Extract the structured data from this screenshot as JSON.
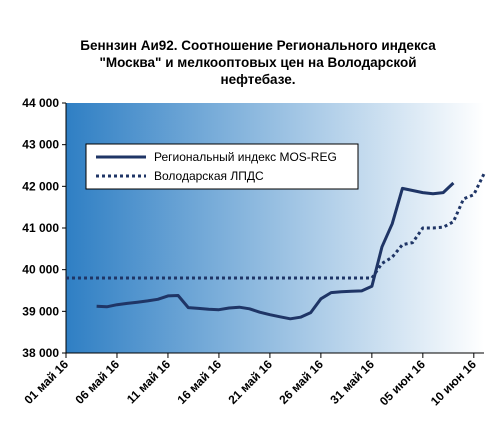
{
  "colors": {
    "series": "#1f3566",
    "plot_gradient_from": "#2f7fc4",
    "plot_gradient_to": "#ffffff",
    "axis": "#000000"
  },
  "chart_data": {
    "type": "line",
    "title_lines": [
      "Беннзин Аи92. Соотношение Регионального индекса",
      "\"Москва\" и мелкооптовых цен на Володарской",
      "нефтебазе."
    ],
    "xlabel": "",
    "ylabel": "",
    "x_range": [
      "2016-05-01",
      "2016-06-11"
    ],
    "ylim": [
      38000,
      44000
    ],
    "y_ticks": [
      38000,
      39000,
      40000,
      41000,
      42000,
      43000,
      44000
    ],
    "y_tick_labels": [
      "38 000",
      "39 000",
      "40 000",
      "41 000",
      "42 000",
      "43 000",
      "44 000"
    ],
    "x_ticks": [
      "2016-05-01",
      "2016-05-06",
      "2016-05-11",
      "2016-05-16",
      "2016-05-21",
      "2016-05-26",
      "2016-05-31",
      "2016-06-05",
      "2016-06-10"
    ],
    "x_tick_labels": [
      "01 май 16",
      "06 май 16",
      "11 май 16",
      "16 май 16",
      "21 май 16",
      "26 май 16",
      "31 май 16",
      "05 июн 16",
      "10 июн 16"
    ],
    "grid": false,
    "legend_position": "upper-left",
    "series": [
      {
        "name": "Региональный индекс MOS-REG",
        "style": "solid",
        "points": [
          [
            "2016-05-04",
            39120
          ],
          [
            "2016-05-05",
            39110
          ],
          [
            "2016-05-06",
            39160
          ],
          [
            "2016-05-07",
            39190
          ],
          [
            "2016-05-08",
            39220
          ],
          [
            "2016-05-09",
            39250
          ],
          [
            "2016-05-10",
            39290
          ],
          [
            "2016-05-11",
            39370
          ],
          [
            "2016-05-12",
            39380
          ],
          [
            "2016-05-13",
            39090
          ],
          [
            "2016-05-14",
            39070
          ],
          [
            "2016-05-15",
            39050
          ],
          [
            "2016-05-16",
            39040
          ],
          [
            "2016-05-17",
            39080
          ],
          [
            "2016-05-18",
            39100
          ],
          [
            "2016-05-19",
            39060
          ],
          [
            "2016-05-20",
            38980
          ],
          [
            "2016-05-21",
            38920
          ],
          [
            "2016-05-22",
            38870
          ],
          [
            "2016-05-23",
            38820
          ],
          [
            "2016-05-24",
            38860
          ],
          [
            "2016-05-25",
            38970
          ],
          [
            "2016-05-26",
            39300
          ],
          [
            "2016-05-27",
            39450
          ],
          [
            "2016-05-28",
            39470
          ],
          [
            "2016-05-29",
            39480
          ],
          [
            "2016-05-30",
            39490
          ],
          [
            "2016-05-31",
            39600
          ],
          [
            "2016-06-01",
            40550
          ],
          [
            "2016-06-02",
            41100
          ],
          [
            "2016-06-03",
            41950
          ],
          [
            "2016-06-04",
            41900
          ],
          [
            "2016-06-05",
            41850
          ],
          [
            "2016-06-06",
            41820
          ],
          [
            "2016-06-07",
            41850
          ],
          [
            "2016-06-08",
            42080
          ]
        ]
      },
      {
        "name": "Володарская ЛПДС",
        "style": "dotted",
        "points": [
          [
            "2016-05-01",
            39800
          ],
          [
            "2016-05-10",
            39800
          ],
          [
            "2016-05-20",
            39800
          ],
          [
            "2016-05-30",
            39800
          ],
          [
            "2016-05-31",
            39800
          ],
          [
            "2016-06-01",
            40150
          ],
          [
            "2016-06-02",
            40300
          ],
          [
            "2016-06-03",
            40600
          ],
          [
            "2016-06-04",
            40650
          ],
          [
            "2016-06-05",
            41000
          ],
          [
            "2016-06-06",
            41000
          ],
          [
            "2016-06-07",
            41020
          ],
          [
            "2016-06-08",
            41150
          ],
          [
            "2016-06-09",
            41700
          ],
          [
            "2016-06-10",
            41800
          ],
          [
            "2016-06-11",
            42300
          ]
        ]
      }
    ]
  }
}
